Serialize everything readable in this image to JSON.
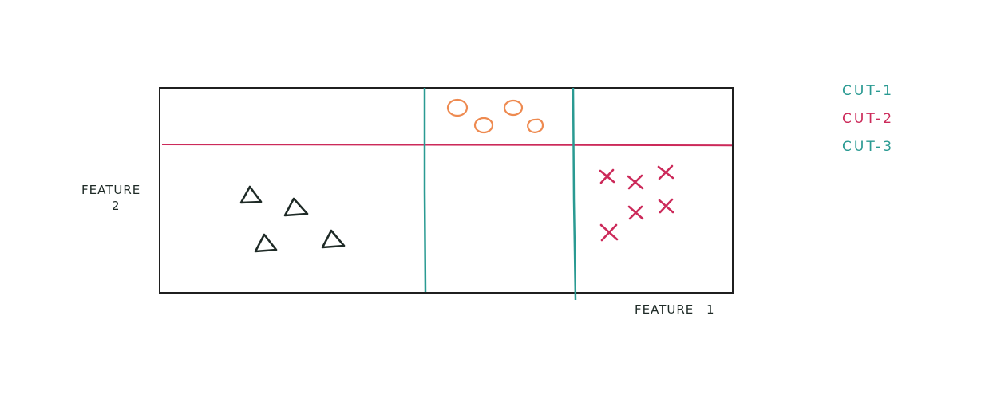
{
  "axes": {
    "x_label": "FEATURE 1",
    "y_label_line1": "FEATURE",
    "y_label_line2": "2"
  },
  "legend": [
    {
      "label": "CUT-1",
      "color": "#2a9a92"
    },
    {
      "label": "CUT-2",
      "color": "#cc2a5a"
    },
    {
      "label": "CUT-3",
      "color": "#2a9a92"
    }
  ],
  "colors": {
    "frame": "#1f1f1f",
    "triangle": "#1e2a26",
    "circle": "#ee8a50",
    "cross": "#cc2a5a",
    "cut_vertical": "#2a9a92",
    "cut_horizontal": "#cc2a5a"
  },
  "icons": {
    "class_a": "triangle-icon",
    "class_b": "circle-icon",
    "class_c": "cross-icon"
  }
}
